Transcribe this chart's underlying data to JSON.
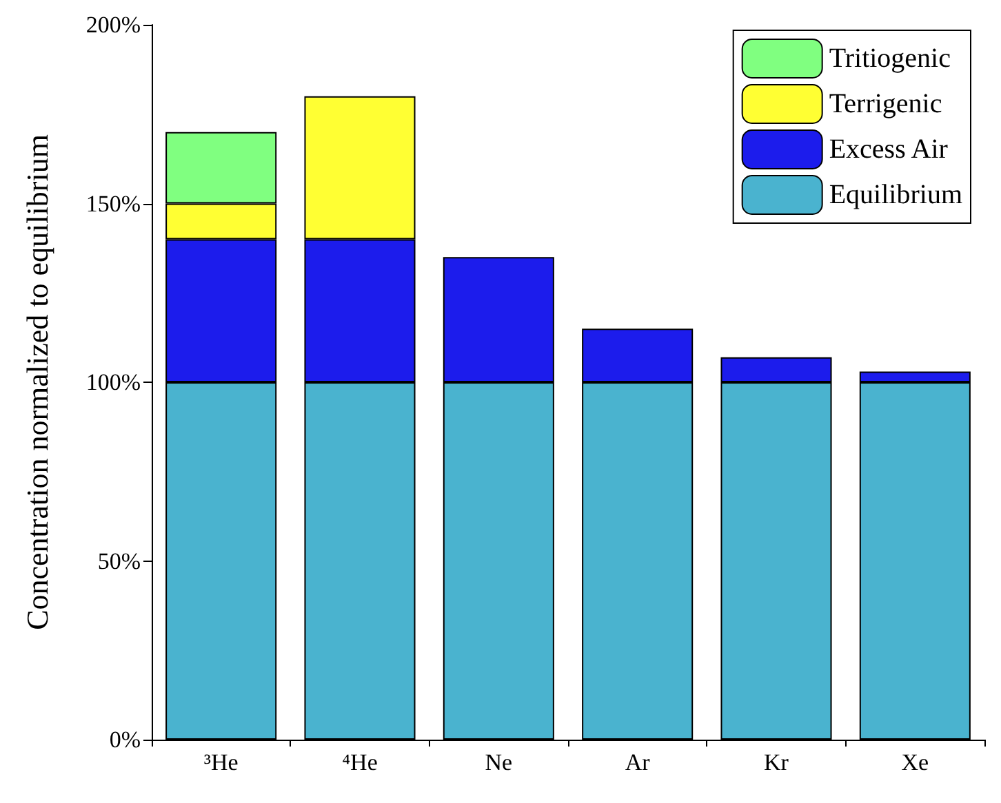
{
  "chart_data": {
    "type": "bar",
    "stacked": true,
    "ylabel": "Concentration normalized to equilibrium",
    "categories": [
      "³He",
      "⁴He",
      "Ne",
      "Ar",
      "Kr",
      "Xe"
    ],
    "series": [
      {
        "name": "Equilibrium",
        "color": "#4ab3cf",
        "values": [
          100,
          100,
          100,
          100,
          100,
          100
        ]
      },
      {
        "name": "Excess Air",
        "color": "#1c1cec",
        "values": [
          40,
          40,
          35,
          15,
          7,
          3
        ]
      },
      {
        "name": "Terrigenic",
        "color": "#ffff33",
        "values": [
          10,
          40,
          null,
          null,
          null,
          null
        ]
      },
      {
        "name": "Tritiogenic",
        "color": "#80ff80",
        "values": [
          20,
          null,
          null,
          null,
          null,
          null
        ]
      }
    ],
    "ylim": [
      0,
      200
    ],
    "yticks": [
      {
        "value": 0,
        "label": "0%"
      },
      {
        "value": 50,
        "label": "50%"
      },
      {
        "value": 100,
        "label": "100%"
      },
      {
        "value": 150,
        "label": "150%"
      },
      {
        "value": 200,
        "label": "200%"
      }
    ],
    "grid": false,
    "legend": "top right"
  }
}
